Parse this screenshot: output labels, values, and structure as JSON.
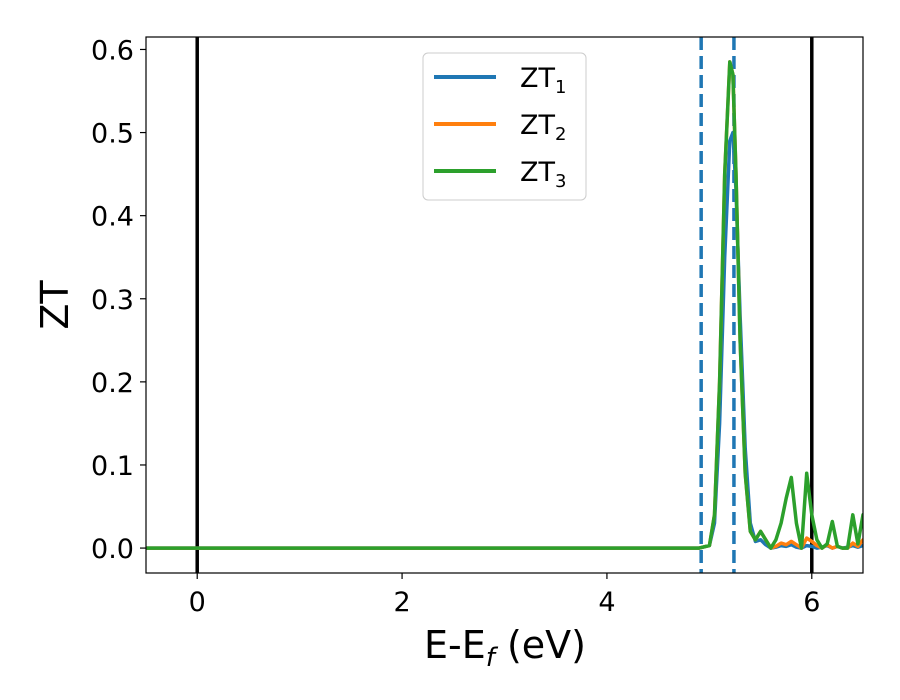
{
  "chart_data": {
    "type": "line",
    "title": "",
    "xlabel": {
      "main": "E-E",
      "sub": "f",
      "suffix": " (eV)"
    },
    "ylabel": "ZT",
    "xlim": [
      -0.5,
      6.5
    ],
    "ylim": [
      -0.03,
      0.615
    ],
    "xticks": [
      0,
      2,
      4,
      6
    ],
    "xtick_labels": [
      "0",
      "2",
      "4",
      "6"
    ],
    "yticks": [
      0.0,
      0.1,
      0.2,
      0.3,
      0.4,
      0.5,
      0.6
    ],
    "ytick_labels": [
      "0.0",
      "0.1",
      "0.2",
      "0.3",
      "0.4",
      "0.5",
      "0.6"
    ],
    "grid": false,
    "legend_position": "top-center",
    "vertical_lines": [
      {
        "x": 0.0,
        "style": "solid",
        "color": "#000000"
      },
      {
        "x": 6.0,
        "style": "solid",
        "color": "#000000"
      },
      {
        "x": 4.92,
        "style": "dashed",
        "color": "#1f77b4"
      },
      {
        "x": 5.24,
        "style": "dashed",
        "color": "#1f77b4"
      }
    ],
    "series": [
      {
        "name": "ZT",
        "name_sub": "1",
        "color": "#1f77b4",
        "x": [
          -0.5,
          4.9,
          5.0,
          5.05,
          5.1,
          5.15,
          5.2,
          5.23,
          5.26,
          5.3,
          5.35,
          5.4,
          5.45,
          5.5,
          5.55,
          5.6,
          5.65,
          5.7,
          5.75,
          5.8,
          5.85,
          5.9,
          5.95,
          6.0,
          6.05,
          6.1,
          6.15,
          6.2,
          6.25,
          6.3,
          6.35,
          6.4,
          6.45,
          6.5
        ],
        "y": [
          0.0,
          0.0,
          0.003,
          0.03,
          0.15,
          0.35,
          0.49,
          0.5,
          0.43,
          0.28,
          0.12,
          0.03,
          0.008,
          0.01,
          0.004,
          0.0,
          0.001,
          0.003,
          0.002,
          0.004,
          0.001,
          0.0,
          0.003,
          0.002,
          0.0,
          0.001,
          0.003,
          0.0,
          0.002,
          0.0,
          0.001,
          0.003,
          0.001,
          0.003
        ]
      },
      {
        "name": "ZT",
        "name_sub": "2",
        "color": "#ff7f0e",
        "x": [
          -0.5,
          4.9,
          5.0,
          5.05,
          5.1,
          5.15,
          5.2,
          5.23,
          5.26,
          5.3,
          5.35,
          5.4,
          5.45,
          5.5,
          5.55,
          5.6,
          5.65,
          5.7,
          5.75,
          5.8,
          5.85,
          5.9,
          5.95,
          6.0,
          6.05,
          6.1,
          6.15,
          6.2,
          6.25,
          6.3,
          6.35,
          6.4,
          6.45,
          6.5
        ],
        "y": [
          0.0,
          0.0,
          0.003,
          0.04,
          0.2,
          0.45,
          0.585,
          0.57,
          0.45,
          0.25,
          0.09,
          0.02,
          0.01,
          0.02,
          0.01,
          0.0,
          0.002,
          0.006,
          0.004,
          0.008,
          0.004,
          0.0,
          0.012,
          0.008,
          0.003,
          0.0,
          0.004,
          0.0,
          0.002,
          0.0,
          0.0,
          0.006,
          0.002,
          0.01
        ]
      },
      {
        "name": "ZT",
        "name_sub": "3",
        "color": "#2ca02c",
        "x": [
          -0.5,
          4.9,
          5.0,
          5.05,
          5.1,
          5.15,
          5.2,
          5.23,
          5.26,
          5.3,
          5.35,
          5.4,
          5.45,
          5.5,
          5.55,
          5.6,
          5.65,
          5.7,
          5.75,
          5.8,
          5.85,
          5.9,
          5.95,
          6.0,
          6.05,
          6.1,
          6.15,
          6.2,
          6.25,
          6.3,
          6.35,
          6.4,
          6.45,
          6.5
        ],
        "y": [
          0.0,
          0.0,
          0.003,
          0.04,
          0.2,
          0.45,
          0.585,
          0.57,
          0.45,
          0.25,
          0.09,
          0.02,
          0.01,
          0.02,
          0.01,
          0.0,
          0.01,
          0.03,
          0.06,
          0.085,
          0.03,
          0.0,
          0.09,
          0.04,
          0.01,
          0.0,
          0.005,
          0.032,
          0.002,
          0.0,
          0.0,
          0.04,
          0.005,
          0.04
        ]
      }
    ]
  }
}
